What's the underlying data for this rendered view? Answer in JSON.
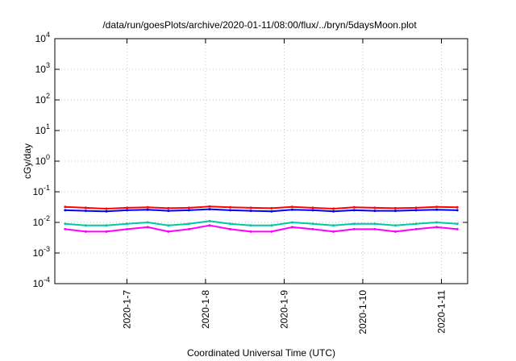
{
  "chart_data": {
    "type": "line",
    "title": "/data/run/goesPlots/archive/2020-01-11/08:00/flux/../bryn/5daysMoon.plot",
    "xlabel": "Coordinated Universal Time (UTC)",
    "ylabel": "cGy/day",
    "y_scale": "log",
    "ylim": [
      0.0001,
      10000
    ],
    "xlim": [
      "2020-01-06T02:00",
      "2020-01-11T08:00"
    ],
    "grid": true,
    "y_ticks": [
      {
        "base": "10",
        "exp": "-4"
      },
      {
        "base": "10",
        "exp": "-3"
      },
      {
        "base": "10",
        "exp": "-2"
      },
      {
        "base": "10",
        "exp": "-1"
      },
      {
        "base": "10",
        "exp": "0"
      },
      {
        "base": "10",
        "exp": "1"
      },
      {
        "base": "10",
        "exp": "2"
      },
      {
        "base": "10",
        "exp": "3"
      },
      {
        "base": "10",
        "exp": "4"
      }
    ],
    "x_ticks": [
      "2020-1-7",
      "2020-1-8",
      "2020-1-9",
      "2020-1-10",
      "2020-1-11"
    ],
    "x_tick_dates": [
      "2020-01-07",
      "2020-01-08",
      "2020-01-09",
      "2020-01-10",
      "2020-01-11"
    ],
    "series": [
      {
        "color": "#ff0000",
        "values": [
          0.032,
          0.03,
          0.028,
          0.03,
          0.031,
          0.029,
          0.03,
          0.033,
          0.031,
          0.03,
          0.029,
          0.032,
          0.03,
          0.028,
          0.031,
          0.03,
          0.029,
          0.03,
          0.032,
          0.031
        ]
      },
      {
        "color": "#0000ff",
        "values": [
          0.025,
          0.024,
          0.023,
          0.025,
          0.026,
          0.024,
          0.025,
          0.027,
          0.025,
          0.024,
          0.023,
          0.026,
          0.025,
          0.023,
          0.025,
          0.024,
          0.024,
          0.025,
          0.026,
          0.025
        ]
      },
      {
        "color": "#00c8a0",
        "values": [
          0.009,
          0.008,
          0.008,
          0.009,
          0.01,
          0.008,
          0.009,
          0.011,
          0.009,
          0.008,
          0.008,
          0.01,
          0.009,
          0.008,
          0.009,
          0.009,
          0.008,
          0.009,
          0.01,
          0.009
        ]
      },
      {
        "color": "#ff00ff",
        "values": [
          0.006,
          0.005,
          0.005,
          0.006,
          0.007,
          0.005,
          0.006,
          0.008,
          0.006,
          0.005,
          0.005,
          0.007,
          0.006,
          0.005,
          0.006,
          0.006,
          0.005,
          0.006,
          0.007,
          0.006
        ]
      }
    ]
  }
}
